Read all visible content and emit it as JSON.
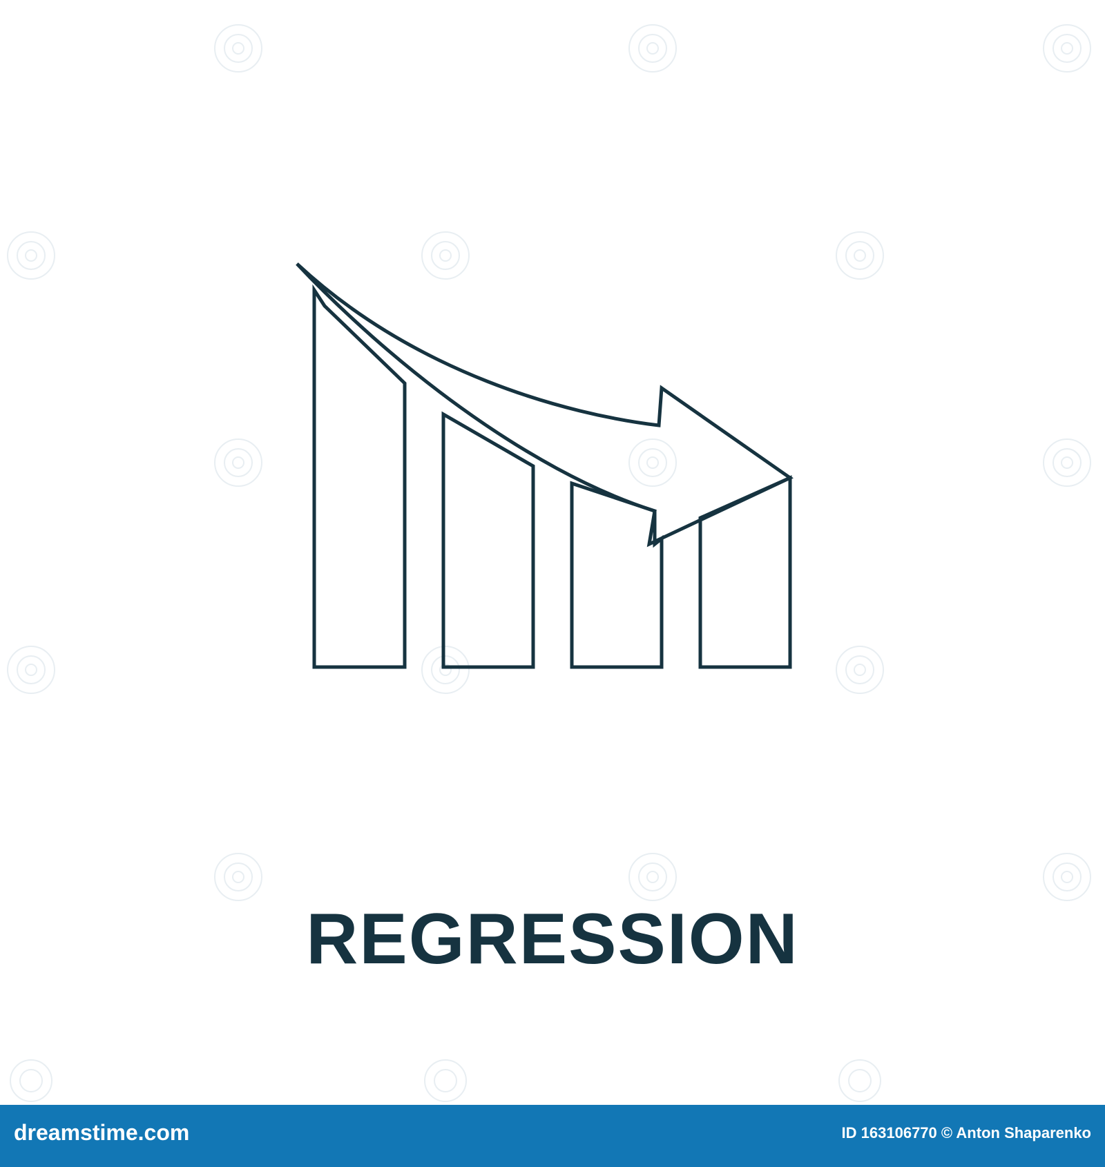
{
  "caption": "REGRESSION",
  "footer": {
    "logo": "dreamstime.com",
    "id_label": "ID",
    "id": "163106770",
    "copyright": "©",
    "author": "Anton Shaparenko"
  },
  "colors": {
    "icon_stroke": "#163340",
    "caption": "#163340",
    "footer_bar": "#1277b5",
    "watermark": "#e8eef2"
  },
  "icon": "declining-bar-chart-with-arrow-icon"
}
